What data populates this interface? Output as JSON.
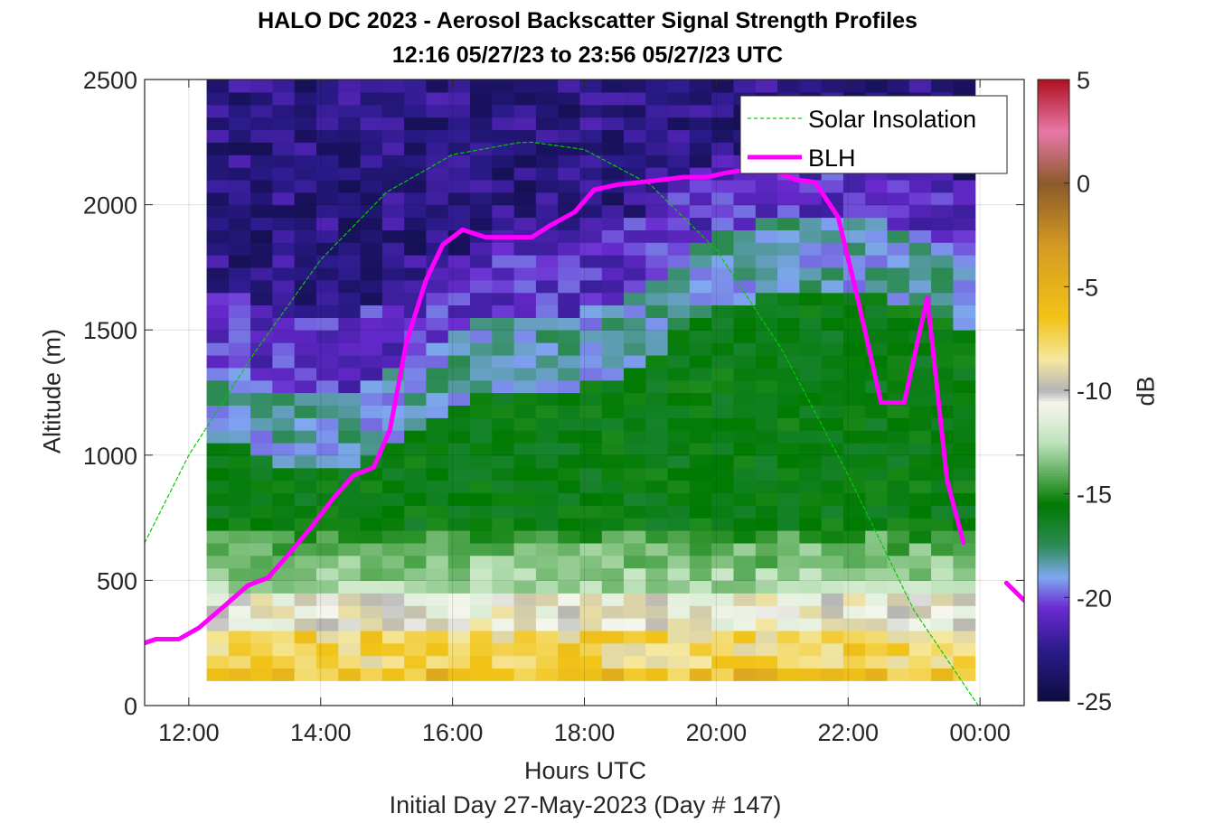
{
  "chart_data": {
    "type": "heatmap",
    "title": "HALO DC 2023 - Aerosol Backscatter Signal Strength Profiles",
    "subtitle": "12:16 05/27/23 to 23:56 05/27/23  UTC",
    "xlabel": "Hours UTC",
    "footer": "Initial Day 27-May-2023 (Day # 147)",
    "ylabel": "Altitude (m)",
    "colorbar_label": "dB",
    "xlim": [
      11.33,
      24.67
    ],
    "ylim": [
      0,
      2500
    ],
    "x_ticks": [
      {
        "value": 12,
        "label": "12:00"
      },
      {
        "value": 14,
        "label": "14:00"
      },
      {
        "value": 16,
        "label": "16:00"
      },
      {
        "value": 18,
        "label": "18:00"
      },
      {
        "value": 20,
        "label": "20:00"
      },
      {
        "value": 22,
        "label": "22:00"
      },
      {
        "value": 24,
        "label": "00:00"
      }
    ],
    "y_ticks": [
      0,
      500,
      1000,
      1500,
      2000,
      2500
    ],
    "colorbar_ticks": [
      5,
      0,
      -5,
      -10,
      -15,
      -20,
      -25
    ],
    "clim": [
      -25,
      5
    ],
    "grid": true,
    "legend_placement": "top-right",
    "heatmap": {
      "x_start": 12.27,
      "x_end": 23.93,
      "bin_hours": 0.333,
      "y_bottom": 100,
      "y_top": 2500,
      "bin_meters": 50
    },
    "series": [
      {
        "name": "Solar Insolation",
        "style": "dashed",
        "color": "#00cc00",
        "x": [
          11.33,
          12.0,
          13.0,
          14.0,
          15.0,
          16.0,
          17.0,
          17.2,
          18.0,
          19.0,
          20.0,
          21.0,
          22.0,
          23.0,
          24.0,
          24.25,
          24.67
        ],
        "y": [
          650,
          1000,
          1410,
          1780,
          2050,
          2200,
          2248,
          2250,
          2220,
          2080,
          1820,
          1420,
          920,
          380,
          -10,
          0,
          0
        ]
      },
      {
        "name": "BLH",
        "style": "solid",
        "color": "#ff00ff",
        "x": [
          11.33,
          11.5,
          11.85,
          12.15,
          12.55,
          12.9,
          13.2,
          13.5,
          13.85,
          14.2,
          14.5,
          14.8,
          15.05,
          15.3,
          15.6,
          15.85,
          16.15,
          16.5,
          16.85,
          17.2,
          17.5,
          17.85,
          18.15,
          18.5,
          18.85,
          19.2,
          19.5,
          19.85,
          20.2,
          20.5,
          20.85,
          21.2,
          21.5,
          21.85,
          22.15,
          22.5,
          22.85,
          23.2,
          23.5,
          23.75,
          24.15,
          24.4,
          24.67
        ],
        "y": [
          250,
          265,
          265,
          310,
          400,
          480,
          510,
          600,
          710,
          830,
          920,
          950,
          1100,
          1450,
          1700,
          1840,
          1900,
          1870,
          1870,
          1870,
          1920,
          1970,
          2060,
          2080,
          2090,
          2100,
          2110,
          2110,
          2130,
          2140,
          2140,
          2100,
          2090,
          1950,
          1620,
          1210,
          1210,
          1630,
          900,
          650,
          null,
          490,
          420
        ]
      }
    ],
    "colors": {
      "colormap_stops": [
        "#0d0c40",
        "#2c1b8c",
        "#6a2ad0",
        "#7fa8f0",
        "#2e8b57",
        "#007a00",
        "#bfe3bc",
        "#f6f6ee",
        "#b4b4b4",
        "#f5e8a0",
        "#f2c418",
        "#d49a22",
        "#8b5a2b",
        "#e878a8",
        "#b01020"
      ]
    }
  }
}
